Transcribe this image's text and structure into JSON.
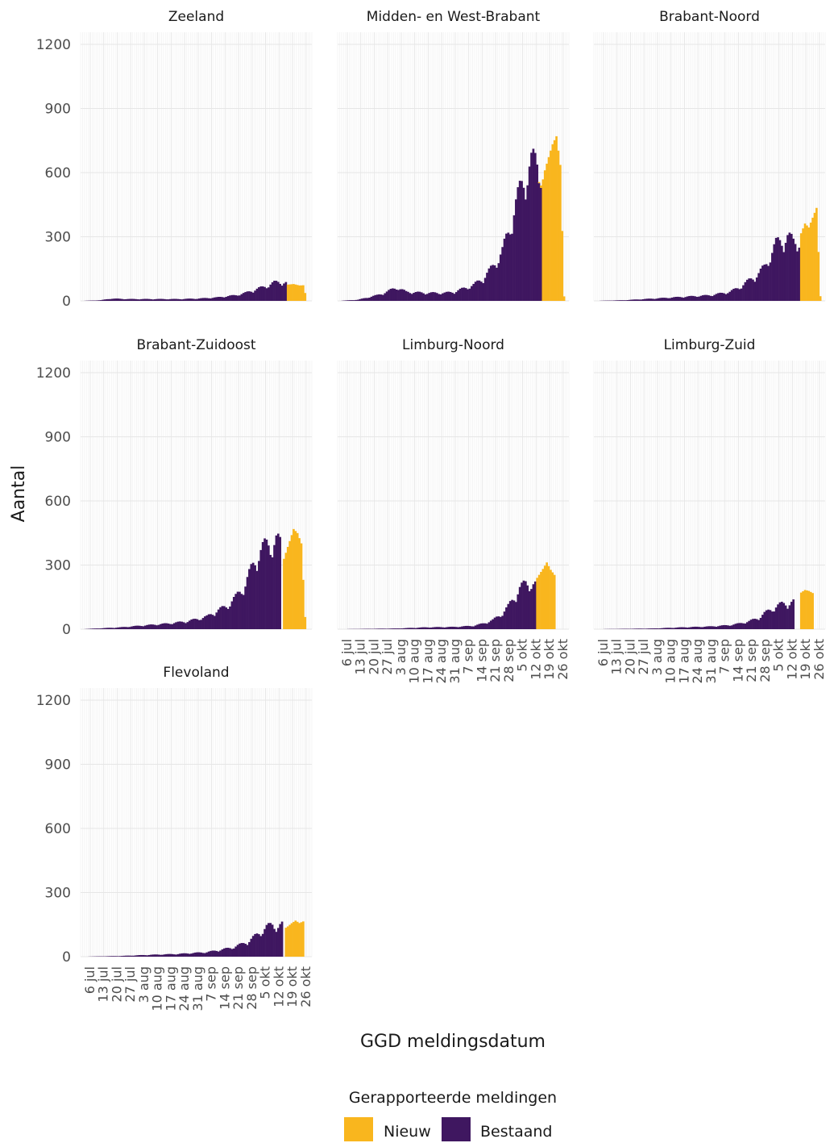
{
  "colors": {
    "nieuw": "#F9B61E",
    "bestaand": "#3F1760",
    "grid": "#e6e6e6",
    "grid_minor": "#f1f1f1"
  },
  "chart_data": {
    "type": "bar",
    "stacked": true,
    "facet_layout": "3 columns, shared axes",
    "ylabel": "Aantal",
    "xlabel": "GGD meldingsdatum",
    "ylim": [
      0,
      1200
    ],
    "yticks": [
      "0",
      "300",
      "600",
      "900",
      "1200"
    ],
    "xticks": [
      "6 jul",
      "13 jul",
      "20 jul",
      "27 jul",
      "3 aug",
      "10 aug",
      "17 aug",
      "24 aug",
      "31 aug",
      "7 sep",
      "14 sep",
      "21 sep",
      "28 sep",
      "5 okt",
      "12 okt",
      "19 okt",
      "26 okt"
    ],
    "x_range": [
      "2020-07-01",
      "2020-10-28"
    ],
    "grid": true,
    "legend": {
      "title": "Gerapporteerde meldingen",
      "position": "bottom",
      "entries": [
        "Nieuw",
        "Bestaand"
      ]
    },
    "series": [
      {
        "name": "Bestaand",
        "key": "bestaand"
      },
      {
        "name": "Nieuw",
        "key": "nieuw"
      }
    ],
    "panels": [
      {
        "title": "Zeeland",
        "bestaand": [
          [
            0,
            0
          ],
          [
            10,
            3
          ],
          [
            15,
            10
          ],
          [
            25,
            8
          ],
          [
            35,
            8
          ],
          [
            50,
            8
          ],
          [
            60,
            10
          ],
          [
            70,
            15
          ],
          [
            75,
            20
          ],
          [
            80,
            25
          ],
          [
            85,
            35
          ],
          [
            90,
            50
          ],
          [
            94,
            60
          ],
          [
            97,
            70
          ],
          [
            100,
            80
          ],
          [
            104,
            85
          ],
          [
            106,
            80
          ]
        ],
        "nieuw": [
          [
            103,
            0
          ],
          [
            106,
            0
          ],
          [
            107,
            80
          ],
          [
            110,
            85
          ],
          [
            113,
            80
          ],
          [
            115,
            80
          ],
          [
            117,
            0
          ]
        ]
      },
      {
        "title": "Midden- en West-Brabant",
        "bestaand": [
          [
            0,
            0
          ],
          [
            10,
            5
          ],
          [
            20,
            25
          ],
          [
            25,
            40
          ],
          [
            30,
            60
          ],
          [
            35,
            40
          ],
          [
            45,
            35
          ],
          [
            55,
            35
          ],
          [
            60,
            40
          ],
          [
            65,
            55
          ],
          [
            70,
            70
          ],
          [
            75,
            100
          ],
          [
            80,
            150
          ],
          [
            85,
            220
          ],
          [
            88,
            300
          ],
          [
            91,
            400
          ],
          [
            94,
            480
          ],
          [
            97,
            560
          ],
          [
            100,
            600
          ],
          [
            103,
            610
          ],
          [
            105,
            600
          ]
        ],
        "nieuw": [
          [
            103,
            0
          ],
          [
            105,
            10
          ],
          [
            106,
            520
          ],
          [
            107,
            560
          ],
          [
            109,
            620
          ],
          [
            111,
            680
          ],
          [
            113,
            720
          ],
          [
            115,
            600
          ],
          [
            117,
            20
          ]
        ]
      },
      {
        "title": "Brabant-Noord",
        "bestaand": [
          [
            0,
            0
          ],
          [
            15,
            3
          ],
          [
            30,
            10
          ],
          [
            50,
            20
          ],
          [
            60,
            25
          ],
          [
            70,
            40
          ],
          [
            75,
            60
          ],
          [
            80,
            90
          ],
          [
            85,
            120
          ],
          [
            88,
            150
          ],
          [
            91,
            200
          ],
          [
            94,
            250
          ],
          [
            97,
            270
          ],
          [
            100,
            280
          ],
          [
            103,
            260
          ],
          [
            106,
            270
          ]
        ],
        "nieuw": [
          [
            104,
            0
          ],
          [
            106,
            0
          ],
          [
            107,
            300
          ],
          [
            109,
            340
          ],
          [
            111,
            320
          ],
          [
            113,
            360
          ],
          [
            115,
            400
          ],
          [
            117,
            20
          ]
        ]
      },
      {
        "title": "Brabant-Zuidoost",
        "bestaand": [
          [
            0,
            0
          ],
          [
            20,
            8
          ],
          [
            30,
            15
          ],
          [
            45,
            25
          ],
          [
            55,
            35
          ],
          [
            65,
            55
          ],
          [
            70,
            80
          ],
          [
            75,
            100
          ],
          [
            80,
            140
          ],
          [
            85,
            200
          ],
          [
            89,
            280
          ],
          [
            92,
            340
          ],
          [
            95,
            360
          ],
          [
            98,
            380
          ],
          [
            101,
            390
          ],
          [
            103,
            370
          ]
        ],
        "nieuw": [
          [
            102,
            0
          ],
          [
            104,
            0
          ],
          [
            105,
            350
          ],
          [
            108,
            450
          ],
          [
            110,
            520
          ],
          [
            112,
            490
          ],
          [
            114,
            430
          ],
          [
            116,
            60
          ],
          [
            117,
            0
          ]
        ]
      },
      {
        "title": "Limburg-Noord",
        "bestaand": [
          [
            0,
            0
          ],
          [
            30,
            3
          ],
          [
            45,
            8
          ],
          [
            60,
            10
          ],
          [
            70,
            15
          ],
          [
            75,
            25
          ],
          [
            80,
            40
          ],
          [
            85,
            70
          ],
          [
            88,
            100
          ],
          [
            91,
            140
          ],
          [
            94,
            180
          ],
          [
            97,
            200
          ],
          [
            100,
            205
          ],
          [
            102,
            195
          ]
        ],
        "nieuw": [
          [
            101,
            0
          ],
          [
            102,
            0
          ],
          [
            103,
            220
          ],
          [
            106,
            260
          ],
          [
            108,
            290
          ],
          [
            110,
            260
          ],
          [
            112,
            240
          ],
          [
            113,
            0
          ]
        ]
      },
      {
        "title": "Limburg-Zuid",
        "bestaand": [
          [
            0,
            0
          ],
          [
            30,
            3
          ],
          [
            45,
            8
          ],
          [
            60,
            12
          ],
          [
            70,
            18
          ],
          [
            75,
            25
          ],
          [
            80,
            35
          ],
          [
            85,
            50
          ],
          [
            88,
            70
          ],
          [
            91,
            85
          ],
          [
            94,
            100
          ],
          [
            97,
            110
          ],
          [
            100,
            115
          ],
          [
            103,
            120
          ]
        ],
        "nieuw": [
          [
            104,
            0
          ],
          [
            106,
            0
          ],
          [
            107,
            160
          ],
          [
            109,
            170
          ],
          [
            111,
            165
          ],
          [
            113,
            155
          ],
          [
            114,
            0
          ]
        ]
      },
      {
        "title": "Flevoland",
        "bestaand": [
          [
            0,
            0
          ],
          [
            20,
            3
          ],
          [
            35,
            8
          ],
          [
            50,
            12
          ],
          [
            65,
            20
          ],
          [
            72,
            30
          ],
          [
            78,
            40
          ],
          [
            83,
            55
          ],
          [
            87,
            70
          ],
          [
            90,
            90
          ],
          [
            93,
            110
          ],
          [
            96,
            130
          ],
          [
            99,
            140
          ],
          [
            102,
            135
          ],
          [
            104,
            140
          ]
        ],
        "nieuw": [
          [
            103,
            0
          ],
          [
            105,
            0
          ],
          [
            106,
            150
          ],
          [
            109,
            170
          ],
          [
            111,
            180
          ],
          [
            113,
            165
          ],
          [
            115,
            170
          ],
          [
            116,
            0
          ]
        ]
      }
    ]
  }
}
